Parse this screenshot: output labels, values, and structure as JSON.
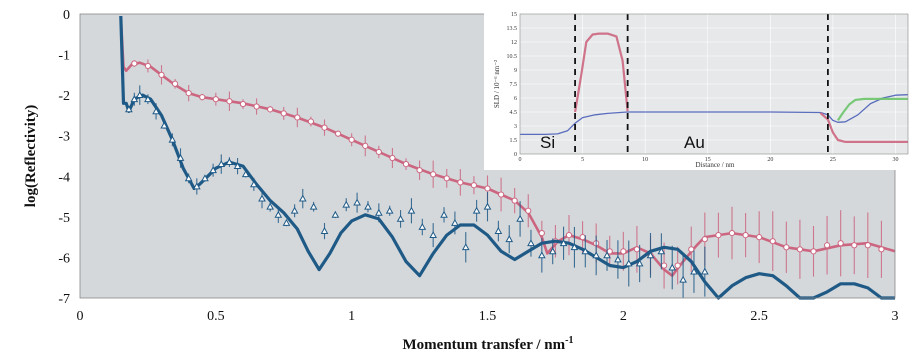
{
  "chart_data": [
    {
      "type": "line",
      "title": "",
      "xlabel": "Momentum transfer / nm",
      "xlabel_superscript": "-1",
      "ylabel": "log(Reflectivity)",
      "xlim": [
        0,
        3
      ],
      "ylim": [
        -7,
        0
      ],
      "x_ticks": [
        0,
        0.5,
        1,
        1.5,
        2,
        2.5,
        3
      ],
      "x_tick_labels": [
        "0",
        "0.5",
        "1",
        "1.5",
        "2",
        "2.5",
        "3"
      ],
      "y_ticks": [
        0,
        -1,
        -2,
        -3,
        -4,
        -5,
        -6,
        -7
      ],
      "y_tick_labels": [
        "0",
        "-1",
        "-2",
        "-3",
        "-4",
        "-5",
        "-6",
        "-7"
      ],
      "grid": false,
      "background": "#d4d8db",
      "series": [
        {
          "color": "#cc6680",
          "style": "fit line with circle markers and error bars",
          "fit": {
            "x": [
              0.15,
              0.16,
              0.17,
              0.19,
              0.22,
              0.26,
              0.3,
              0.35,
              0.4,
              0.45,
              0.5,
              0.6,
              0.7,
              0.8,
              0.9,
              1.0,
              1.1,
              1.2,
              1.3,
              1.4,
              1.5,
              1.6,
              1.65,
              1.7,
              1.72,
              1.76,
              1.8,
              1.85,
              1.9,
              1.95,
              2.0,
              2.05,
              2.1,
              2.15,
              2.18,
              2.22,
              2.27,
              2.3,
              2.4,
              2.5,
              2.6,
              2.7,
              2.8,
              2.9,
              3.0
            ],
            "y": [
              -0.05,
              -1.3,
              -1.4,
              -1.25,
              -1.2,
              -1.3,
              -1.5,
              -1.75,
              -1.95,
              -2.05,
              -2.1,
              -2.2,
              -2.35,
              -2.55,
              -2.8,
              -3.1,
              -3.4,
              -3.7,
              -3.95,
              -4.15,
              -4.3,
              -4.6,
              -4.9,
              -5.5,
              -5.9,
              -5.6,
              -5.45,
              -5.55,
              -5.7,
              -5.9,
              -5.9,
              -5.75,
              -5.9,
              -6.3,
              -6.45,
              -6.1,
              -5.7,
              -5.5,
              -5.4,
              -5.5,
              -5.75,
              -5.85,
              -5.7,
              -5.65,
              -5.85
            ]
          },
          "markers": {
            "x": [
              0.2,
              0.25,
              0.3,
              0.35,
              0.4,
              0.45,
              0.5,
              0.55,
              0.6,
              0.65,
              0.7,
              0.75,
              0.8,
              0.85,
              0.9,
              0.95,
              1.0,
              1.05,
              1.1,
              1.15,
              1.2,
              1.25,
              1.3,
              1.35,
              1.4,
              1.45,
              1.5,
              1.55,
              1.6,
              1.65,
              1.7,
              1.75,
              1.8,
              1.85,
              1.9,
              1.95,
              2.0,
              2.05,
              2.1,
              2.15,
              2.2,
              2.25,
              2.3,
              2.35,
              2.4,
              2.45,
              2.5,
              2.55,
              2.6,
              2.65,
              2.7,
              2.75,
              2.8,
              2.85,
              2.9,
              2.95
            ],
            "y": [
              -1.22,
              -1.28,
              -1.5,
              -1.72,
              -1.95,
              -2.05,
              -2.1,
              -2.15,
              -2.22,
              -2.28,
              -2.35,
              -2.45,
              -2.55,
              -2.65,
              -2.8,
              -2.95,
              -3.1,
              -3.25,
              -3.4,
              -3.55,
              -3.7,
              -3.85,
              -3.95,
              -4.05,
              -4.15,
              -4.22,
              -4.3,
              -4.45,
              -4.6,
              -4.85,
              -5.4,
              -5.6,
              -5.45,
              -5.5,
              -5.65,
              -5.85,
              -5.85,
              -5.8,
              -5.95,
              -6.2,
              -6.2,
              -5.8,
              -5.55,
              -5.45,
              -5.4,
              -5.45,
              -5.5,
              -5.6,
              -5.75,
              -5.8,
              -5.85,
              -5.7,
              -5.65,
              -5.7,
              -5.7,
              -5.8
            ]
          }
        },
        {
          "color": "#1f5a87",
          "style": "fit line with triangle markers and error bars",
          "fit": {
            "x": [
              0.15,
              0.16,
              0.17,
              0.18,
              0.2,
              0.23,
              0.26,
              0.3,
              0.34,
              0.38,
              0.42,
              0.44,
              0.47,
              0.5,
              0.55,
              0.6,
              0.65,
              0.7,
              0.75,
              0.8,
              0.84,
              0.88,
              0.92,
              0.96,
              1.0,
              1.05,
              1.1,
              1.15,
              1.2,
              1.25,
              1.3,
              1.35,
              1.4,
              1.45,
              1.5,
              1.55,
              1.6,
              1.65,
              1.7,
              1.75,
              1.8,
              1.85,
              1.9,
              1.95,
              2.0,
              2.05,
              2.1,
              2.15,
              2.2,
              2.25,
              2.3,
              2.35,
              2.4,
              2.45,
              2.5,
              2.55,
              2.6,
              2.65,
              2.7,
              2.75,
              2.8,
              2.85,
              2.9,
              2.95,
              3.0
            ],
            "y": [
              -0.05,
              -2.2,
              -2.2,
              -2.4,
              -2.1,
              -2.0,
              -2.1,
              -2.5,
              -3.1,
              -3.8,
              -4.3,
              -4.2,
              -4.0,
              -3.8,
              -3.65,
              -3.75,
              -4.2,
              -4.6,
              -4.9,
              -5.3,
              -5.85,
              -6.3,
              -5.9,
              -5.4,
              -5.1,
              -4.95,
              -5.05,
              -5.5,
              -6.1,
              -6.45,
              -5.9,
              -5.45,
              -5.2,
              -5.2,
              -5.45,
              -5.85,
              -6.05,
              -5.85,
              -5.65,
              -5.6,
              -5.65,
              -5.8,
              -6.0,
              -6.2,
              -6.25,
              -6.1,
              -5.85,
              -5.75,
              -5.8,
              -6.1,
              -6.6,
              -7.0,
              -6.7,
              -6.5,
              -6.4,
              -6.45,
              -6.7,
              -7.0,
              -7.0,
              -6.85,
              -6.65,
              -6.65,
              -6.75,
              -7.0,
              -7.0
            ]
          },
          "markers": {
            "x": [
              0.18,
              0.2,
              0.22,
              0.25,
              0.28,
              0.31,
              0.34,
              0.37,
              0.4,
              0.43,
              0.46,
              0.49,
              0.52,
              0.55,
              0.58,
              0.61,
              0.64,
              0.67,
              0.7,
              0.73,
              0.76,
              0.79,
              0.82,
              0.86,
              0.9,
              0.94,
              0.98,
              1.02,
              1.06,
              1.1,
              1.14,
              1.18,
              1.22,
              1.26,
              1.3,
              1.34,
              1.38,
              1.42,
              1.46,
              1.5,
              1.54,
              1.58,
              1.62,
              1.66,
              1.7,
              1.74,
              1.78,
              1.82,
              1.86,
              1.9,
              1.94,
              1.98,
              2.02,
              2.06,
              2.1,
              2.14,
              2.18,
              2.22,
              2.26,
              2.3
            ],
            "y": [
              -2.35,
              -2.1,
              -2.0,
              -2.1,
              -2.4,
              -2.75,
              -3.1,
              -3.55,
              -4.05,
              -4.25,
              -4.05,
              -3.85,
              -3.7,
              -3.65,
              -3.75,
              -3.95,
              -4.2,
              -4.55,
              -4.75,
              -4.95,
              -5.15,
              -4.85,
              -4.55,
              -4.75,
              -5.35,
              -4.95,
              -4.7,
              -4.65,
              -4.75,
              -4.9,
              -4.85,
              -5.05,
              -4.85,
              -5.25,
              -5.45,
              -4.95,
              -5.15,
              -5.75,
              -4.85,
              -4.75,
              -5.35,
              -5.55,
              -5.05,
              -5.65,
              -5.95,
              -5.85,
              -5.65,
              -5.75,
              -5.85,
              -5.95,
              -5.95,
              -6.05,
              -6.15,
              -6.15,
              -5.95,
              -5.85,
              -6.25,
              -6.55,
              -6.35,
              -6.35
            ]
          }
        }
      ]
    },
    {
      "type": "line",
      "title": "",
      "xlabel": "Distance / nm",
      "ylabel": "SLD / 10⁻⁶ nm⁻²",
      "xlim": [
        0,
        31
      ],
      "ylim": [
        0,
        15
      ],
      "x_ticks": [
        0,
        5,
        10,
        15,
        20,
        25,
        30
      ],
      "x_tick_labels": [
        "0",
        "5",
        "10",
        "15",
        "20",
        "25",
        "30"
      ],
      "y_ticks": [
        0,
        1.5,
        3,
        4.5,
        6,
        7.5,
        9,
        10.5,
        12,
        13.5,
        15
      ],
      "y_tick_labels": [
        "0",
        "1.5",
        "3",
        "4.5",
        "6",
        "7.5",
        "9",
        "10.5",
        "12",
        "13.5",
        "15"
      ],
      "annotations": [
        "Si",
        "Au"
      ],
      "dashed_lines_x": [
        4.4,
        8.6,
        24.6
      ],
      "series": [
        {
          "color": "#4a5fb8",
          "x": [
            0,
            2,
            3,
            3.8,
            4.4,
            5,
            6,
            7,
            8,
            8.6,
            10,
            15,
            20,
            24,
            24.6,
            25,
            25.4,
            26,
            27,
            28,
            29,
            30,
            31
          ],
          "y": [
            2.1,
            2.1,
            2.15,
            2.5,
            3.3,
            3.9,
            4.2,
            4.35,
            4.45,
            4.5,
            4.5,
            4.5,
            4.5,
            4.45,
            4.2,
            3.6,
            3.4,
            3.45,
            4.2,
            5.4,
            6.0,
            6.3,
            6.35
          ]
        },
        {
          "color": "#cc6680",
          "x": [
            4.4,
            4.9,
            5.3,
            5.8,
            6.3,
            7,
            7.7,
            8.2,
            8.6
          ],
          "y": [
            4.5,
            8.5,
            12.0,
            12.8,
            12.9,
            12.9,
            12.6,
            10.0,
            4.6
          ]
        },
        {
          "color": "#cc6680",
          "x": [
            24,
            24.6,
            25,
            25.4,
            26,
            27,
            28,
            29,
            30,
            31
          ],
          "y": [
            4.4,
            3.7,
            2.3,
            1.5,
            1.3,
            1.3,
            1.3,
            1.3,
            1.3,
            1.3
          ]
        },
        {
          "color": "#6cc46c",
          "x": [
            25.4,
            25.8,
            26.3,
            26.8,
            27.5,
            28.5,
            29.5,
            31
          ],
          "y": [
            3.6,
            4.4,
            5.3,
            5.8,
            5.9,
            5.9,
            5.9,
            5.9
          ]
        }
      ]
    }
  ]
}
